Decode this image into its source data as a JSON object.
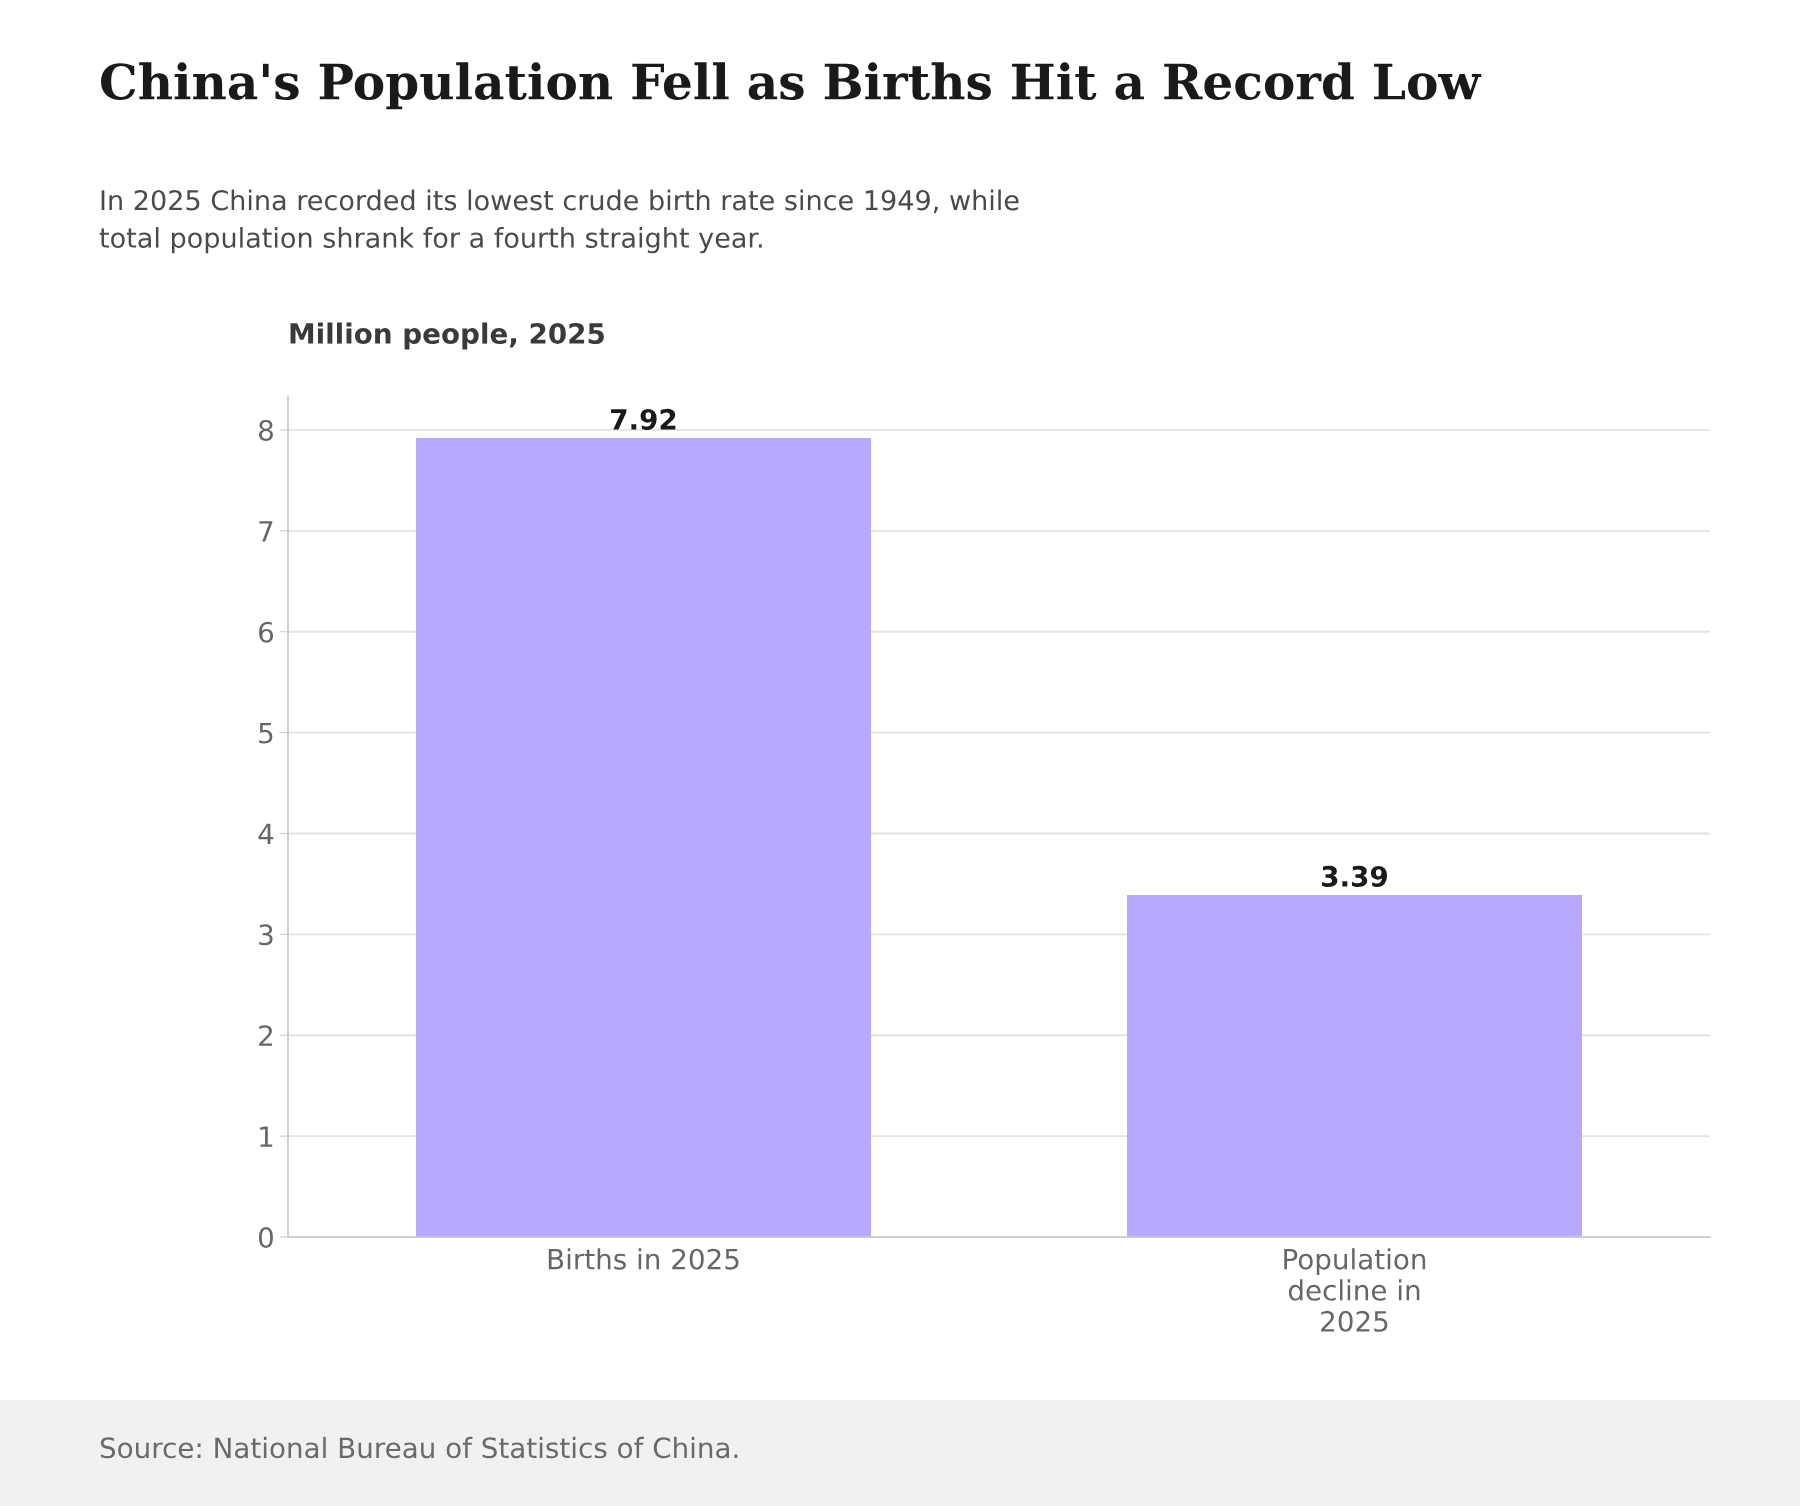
{
  "chart_data": {
    "type": "bar",
    "title": "China's Population Fell as Births Hit a Record Low",
    "subtitle": "In 2025 China recorded its lowest crude birth rate since 1949, while\ntotal population shrank for a fourth straight year.",
    "ylabel": "Million people, 2025",
    "categories": [
      "Births in 2025",
      "Population\ndecline in\n2025"
    ],
    "values": [
      7.92,
      3.39
    ],
    "color": "#b8a8ff",
    "ylim": [
      0,
      8.33
    ],
    "yticks": [
      0,
      1,
      2,
      3,
      4,
      5,
      6,
      7,
      8
    ],
    "grid": "y",
    "data_labels": true,
    "annotations": [
      "Source: National Bureau of Statistics of China."
    ]
  }
}
